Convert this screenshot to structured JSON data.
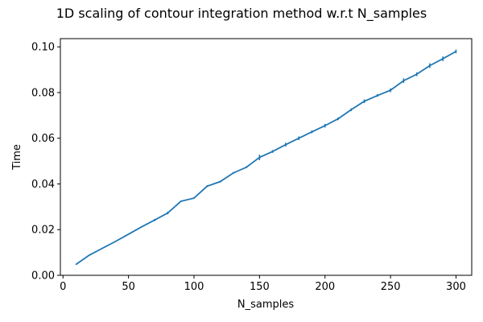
{
  "chart_data": {
    "type": "line",
    "title": "1D scaling of contour integration method w.r.t N_samples",
    "xlabel": "N_samples",
    "ylabel": "Time",
    "xlim": [
      -2,
      312
    ],
    "ylim": [
      0.0,
      0.1036
    ],
    "xticks": [
      0,
      50,
      100,
      150,
      200,
      250,
      300
    ],
    "yticks": [
      0.0,
      0.02,
      0.04,
      0.06,
      0.08,
      0.1
    ],
    "xtick_labels": [
      "0",
      "50",
      "100",
      "150",
      "200",
      "250",
      "300"
    ],
    "ytick_labels": [
      "0.00",
      "0.02",
      "0.04",
      "0.06",
      "0.08",
      "0.10"
    ],
    "grid": false,
    "color": "#1f77b4",
    "series": [
      {
        "x": [
          10,
          20,
          30,
          40,
          50,
          60,
          70,
          80,
          90,
          100,
          110,
          120,
          130,
          140,
          150,
          160,
          170,
          180,
          190,
          200,
          210,
          220,
          230,
          240,
          250,
          260,
          270,
          280,
          290,
          300
        ],
        "values": [
          0.0048,
          0.0088,
          0.0118,
          0.0148,
          0.018,
          0.0212,
          0.0242,
          0.0273,
          0.0324,
          0.0338,
          0.039,
          0.041,
          0.0448,
          0.0473,
          0.0516,
          0.0542,
          0.0572,
          0.06,
          0.0628,
          0.0655,
          0.0685,
          0.0725,
          0.0762,
          0.0787,
          0.081,
          0.0852,
          0.088,
          0.0918,
          0.0948,
          0.098
        ],
        "errors": [
          0.0002,
          0.0002,
          0.0002,
          0.0002,
          0.0002,
          0.0002,
          0.0005,
          0.0006,
          0.0003,
          0.0003,
          0.0004,
          0.0004,
          0.0004,
          0.0004,
          0.0012,
          0.0006,
          0.0008,
          0.0008,
          0.0006,
          0.0008,
          0.0006,
          0.0006,
          0.0008,
          0.0006,
          0.0008,
          0.001,
          0.0008,
          0.001,
          0.001,
          0.0008
        ]
      }
    ]
  }
}
